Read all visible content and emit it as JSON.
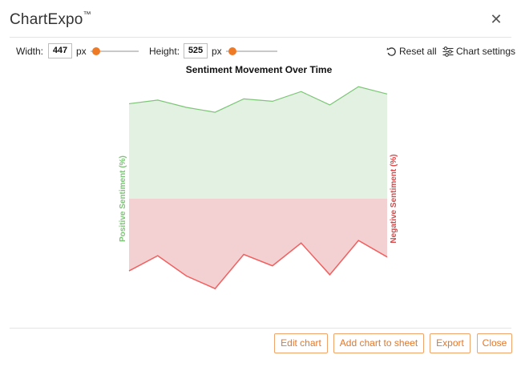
{
  "app": {
    "title": "ChartExpo",
    "trademark": "™"
  },
  "controls": {
    "width_label": "Width:",
    "width_value": "447",
    "width_unit": "px",
    "height_label": "Height:",
    "height_value": "525",
    "height_unit": "px",
    "reset_label": "Reset all",
    "settings_label": "Chart settings",
    "slider_color": "#ef7a25"
  },
  "chart_data": {
    "type": "area",
    "title": "Sentiment Movement Over Time",
    "left_axis_label": "Positive Sentiment (%)",
    "right_axis_label": "Negative Sentiment (%)",
    "grid": false,
    "legend": "none",
    "positive_color": "#7cc576",
    "positive_fill": "#e3f1e3",
    "negative_color": "#f25f5f",
    "negative_fill": "#f3d0d2",
    "positive_values": [
      78,
      81,
      75,
      71,
      82,
      80,
      88,
      77,
      92,
      86
    ],
    "negative_values": [
      57,
      45,
      61,
      71,
      44,
      53,
      35,
      60,
      33,
      46
    ]
  },
  "footer": {
    "edit_label": "Edit chart",
    "add_label": "Add chart to sheet",
    "export_label": "Export",
    "close_label": "Close",
    "accent_color": "#e2772a"
  }
}
